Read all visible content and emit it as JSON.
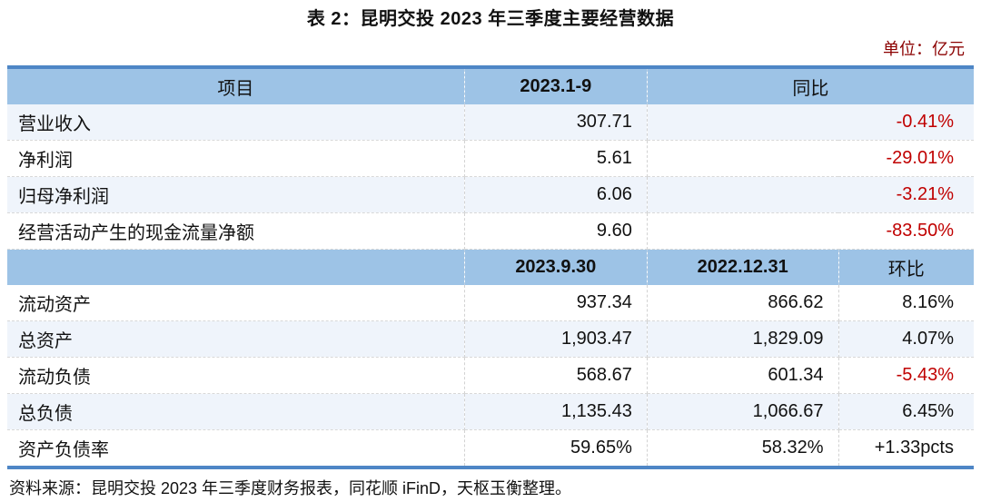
{
  "page": {
    "title": "表 2：昆明交投 2023 年三季度主要经营数据",
    "unit_label": "单位：亿元",
    "source": "资料来源：昆明交投 2023 年三季度财务报表，同花顺 iFinD，天枢玉衡整理。"
  },
  "colors": {
    "header-bg": "#9DC3E6",
    "table-border": "#4E86C6",
    "row-tint": "#EFF4FB",
    "negative": "#C00000",
    "unit-text": "#8B0000",
    "text": "#111111"
  },
  "table": {
    "section_flow": {
      "headers": {
        "item": "项目",
        "period": "2023.1-9",
        "yoy": "同比"
      },
      "rows": [
        {
          "item": "营业收入",
          "value": "307.71",
          "yoy": "-0.41%"
        },
        {
          "item": "净利润",
          "value": "5.61",
          "yoy": "-29.01%"
        },
        {
          "item": "归母净利润",
          "value": "6.06",
          "yoy": "-3.21%"
        },
        {
          "item": "经营活动产生的现金流量净额",
          "value": "9.60",
          "yoy": "-83.50%"
        }
      ]
    },
    "section_balance": {
      "headers": {
        "item": "",
        "current": "2023.9.30",
        "prior": "2022.12.31",
        "qoq": "环比"
      },
      "rows": [
        {
          "item": "流动资产",
          "current": "937.34",
          "prior": "866.62",
          "qoq": "8.16%"
        },
        {
          "item": "总资产",
          "current": "1,903.47",
          "prior": "1,829.09",
          "qoq": "4.07%"
        },
        {
          "item": "流动负债",
          "current": "568.67",
          "prior": "601.34",
          "qoq": "-5.43%"
        },
        {
          "item": "总负债",
          "current": "1,135.43",
          "prior": "1,066.67",
          "qoq": "6.45%"
        },
        {
          "item": "资产负债率",
          "current": "59.65%",
          "prior": "58.32%",
          "qoq": "+1.33pcts"
        }
      ]
    }
  }
}
